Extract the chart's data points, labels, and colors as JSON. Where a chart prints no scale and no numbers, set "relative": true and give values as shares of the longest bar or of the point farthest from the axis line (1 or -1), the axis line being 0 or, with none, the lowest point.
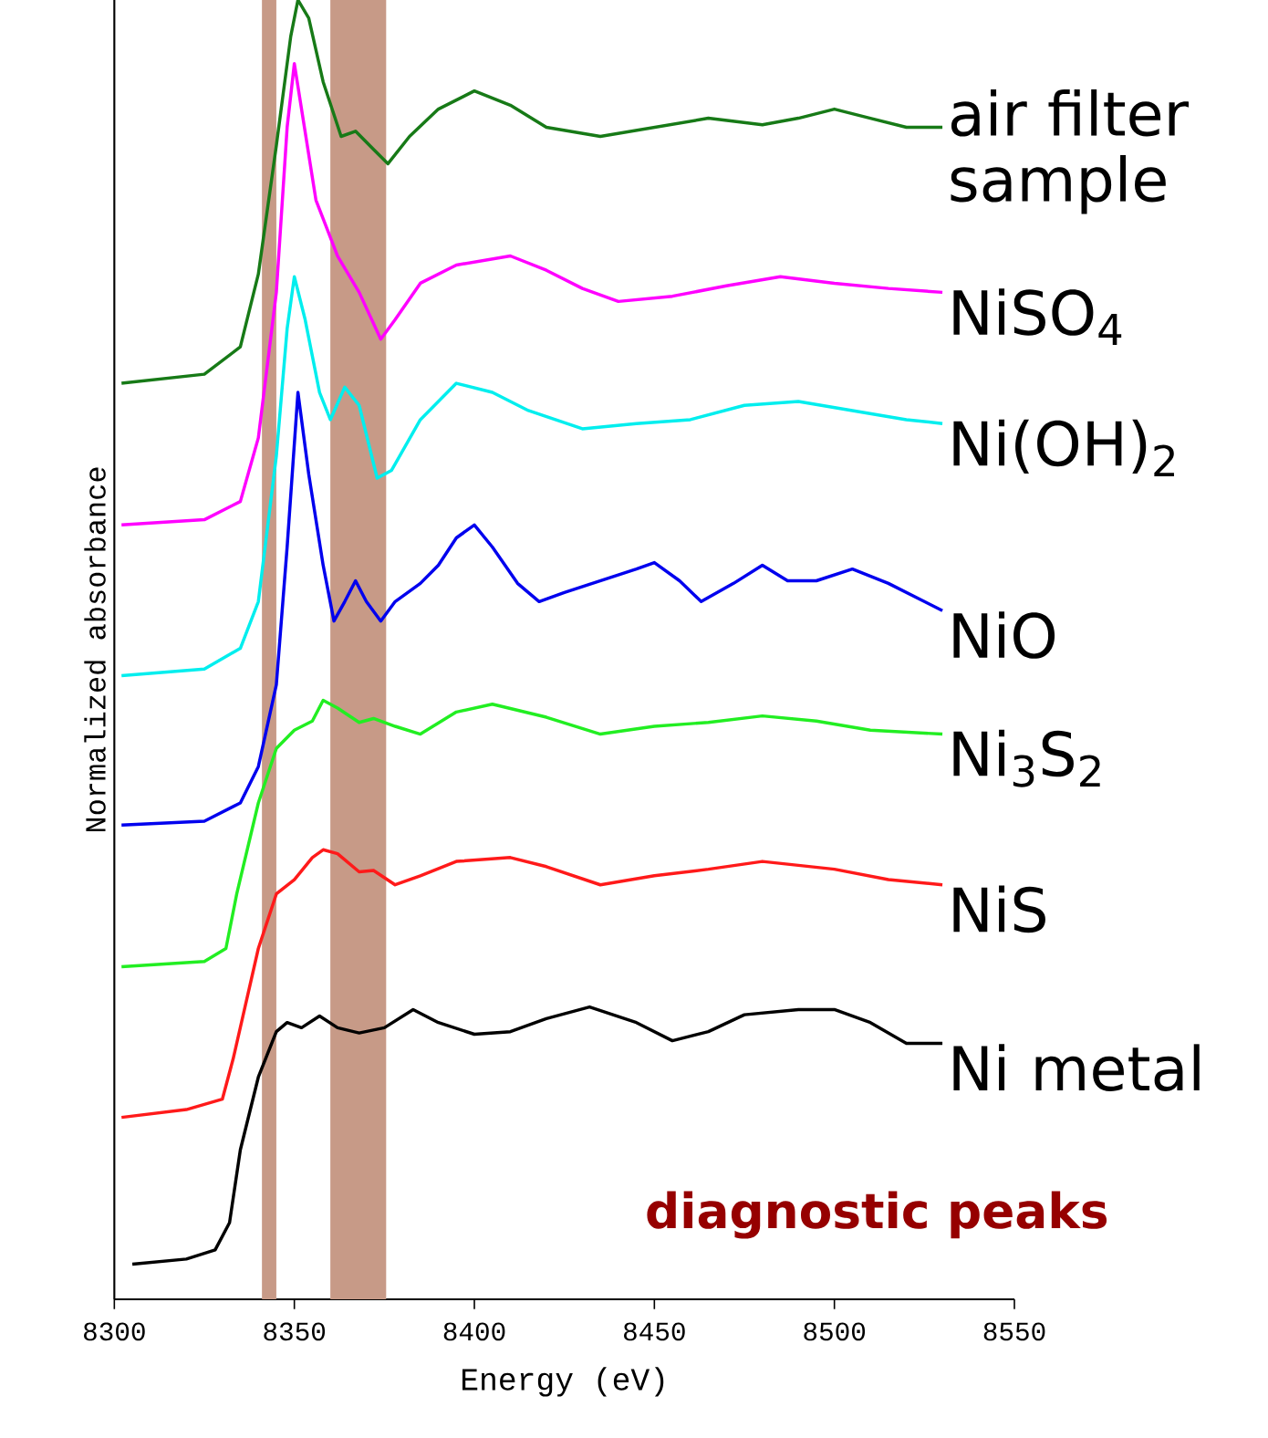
{
  "chart_data": {
    "type": "line",
    "relative": true,
    "xlabel": "Energy (eV)",
    "ylabel": "Normalized absorbance",
    "xlim": [
      8300,
      8550
    ],
    "xticks": [
      8300,
      8350,
      8400,
      8450,
      8500,
      8550
    ],
    "grid": false,
    "legend": false,
    "marker": "none",
    "line_style": "solid",
    "annotations": [
      "diagnostic peaks"
    ],
    "bands": [
      {
        "axis": "x",
        "from": 8341,
        "to": 8345,
        "color": "#c79a87"
      },
      {
        "axis": "x",
        "from": 8360,
        "to": 8375.5,
        "color": "#c79a87"
      }
    ],
    "series": [
      {
        "name": "air filter sample",
        "color": "#177a17",
        "x": [
          8302,
          8325,
          8335,
          8340,
          8345,
          8349,
          8351,
          8354,
          8358,
          8363,
          8367,
          8372,
          8376,
          8382,
          8390,
          8400,
          8410,
          8420,
          8435,
          8450,
          8465,
          8480,
          8490,
          8500,
          8510,
          8520,
          8530
        ],
        "values": [
          0.705,
          0.712,
          0.733,
          0.789,
          0.888,
          0.972,
          1,
          0.986,
          0.937,
          0.895,
          0.899,
          0.885,
          0.874,
          0.895,
          0.916,
          0.93,
          0.919,
          0.902,
          0.895,
          0.902,
          0.909,
          0.904,
          0.909,
          0.916,
          0.909,
          0.902,
          0.902
        ]
      },
      {
        "name": "NiSO$_{4}$",
        "color": "#ff00ff",
        "x": [
          8302,
          8325,
          8335,
          8340,
          8345,
          8348,
          8350,
          8352,
          8356,
          8362,
          8368,
          8374,
          8378,
          8385,
          8395,
          8410,
          8420,
          8430,
          8440,
          8455,
          8470,
          8485,
          8500,
          8515,
          8530
        ],
        "values": [
          0.596,
          0.6,
          0.614,
          0.663,
          0.775,
          0.902,
          0.951,
          0.916,
          0.846,
          0.803,
          0.775,
          0.739,
          0.754,
          0.782,
          0.796,
          0.803,
          0.792,
          0.778,
          0.768,
          0.772,
          0.78,
          0.787,
          0.782,
          0.778,
          0.775
        ]
      },
      {
        "name": "Ni(OH)$_{2}$",
        "color": "#00eeee",
        "x": [
          8302,
          8325,
          8335,
          8340,
          8345,
          8348,
          8350,
          8353,
          8357,
          8360,
          8364,
          8368,
          8373,
          8377,
          8385,
          8395,
          8405,
          8415,
          8430,
          8445,
          8460,
          8475,
          8490,
          8505,
          8520,
          8530
        ],
        "values": [
          0.48,
          0.485,
          0.501,
          0.537,
          0.649,
          0.747,
          0.787,
          0.754,
          0.698,
          0.677,
          0.702,
          0.688,
          0.632,
          0.638,
          0.677,
          0.705,
          0.698,
          0.684,
          0.67,
          0.674,
          0.677,
          0.688,
          0.691,
          0.684,
          0.677,
          0.674
        ]
      },
      {
        "name": "NiO",
        "color": "#0000ee",
        "x": [
          8302,
          8325,
          8335,
          8340,
          8345,
          8348,
          8351,
          8354,
          8358,
          8361,
          8364,
          8367,
          8370,
          8374,
          8378,
          8385,
          8390,
          8395,
          8400,
          8405,
          8412,
          8418,
          8425,
          8435,
          8445,
          8450,
          8457,
          8463,
          8472,
          8480,
          8487,
          8495,
          8505,
          8515,
          8530
        ],
        "values": [
          0.365,
          0.368,
          0.382,
          0.41,
          0.473,
          0.579,
          0.698,
          0.635,
          0.565,
          0.522,
          0.537,
          0.553,
          0.537,
          0.522,
          0.537,
          0.551,
          0.565,
          0.586,
          0.596,
          0.579,
          0.551,
          0.537,
          0.544,
          0.553,
          0.562,
          0.567,
          0.553,
          0.537,
          0.551,
          0.565,
          0.553,
          0.553,
          0.562,
          0.551,
          0.53
        ]
      },
      {
        "name": "Ni$_{3}$S$_{2}$",
        "color": "#22ee22",
        "x": [
          8302,
          8325,
          8331,
          8334,
          8340,
          8345,
          8350,
          8355,
          8358,
          8362,
          8368,
          8372,
          8378,
          8385,
          8395,
          8405,
          8420,
          8435,
          8450,
          8465,
          8480,
          8495,
          8510,
          8530
        ],
        "values": [
          0.256,
          0.26,
          0.27,
          0.312,
          0.382,
          0.424,
          0.438,
          0.445,
          0.461,
          0.455,
          0.444,
          0.447,
          0.441,
          0.435,
          0.452,
          0.458,
          0.448,
          0.435,
          0.441,
          0.444,
          0.449,
          0.445,
          0.438,
          0.435
        ]
      },
      {
        "name": "NiS",
        "color": "#ff1a1a",
        "x": [
          8302,
          8320,
          8330,
          8333,
          8340,
          8345,
          8350,
          8355,
          8358,
          8362,
          8368,
          8372,
          8378,
          8385,
          8395,
          8410,
          8420,
          8435,
          8450,
          8465,
          8480,
          8500,
          8515,
          8530
        ],
        "values": [
          0.14,
          0.146,
          0.154,
          0.185,
          0.27,
          0.312,
          0.323,
          0.34,
          0.346,
          0.343,
          0.329,
          0.33,
          0.319,
          0.326,
          0.337,
          0.34,
          0.333,
          0.319,
          0.326,
          0.331,
          0.337,
          0.331,
          0.323,
          0.319
        ]
      },
      {
        "name": "Ni metal",
        "color": "#000000",
        "x": [
          8305,
          8320,
          8328,
          8332,
          8335,
          8340,
          8345,
          8348,
          8352,
          8357,
          8362,
          8368,
          8375,
          8383,
          8390,
          8400,
          8410,
          8420,
          8432,
          8445,
          8455,
          8465,
          8475,
          8490,
          8500,
          8510,
          8520,
          8530
        ],
        "values": [
          0.027,
          0.031,
          0.038,
          0.059,
          0.115,
          0.171,
          0.206,
          0.213,
          0.209,
          0.218,
          0.209,
          0.205,
          0.209,
          0.223,
          0.213,
          0.204,
          0.206,
          0.216,
          0.225,
          0.213,
          0.199,
          0.206,
          0.219,
          0.223,
          0.223,
          0.213,
          0.197,
          0.197
        ]
      }
    ]
  }
}
